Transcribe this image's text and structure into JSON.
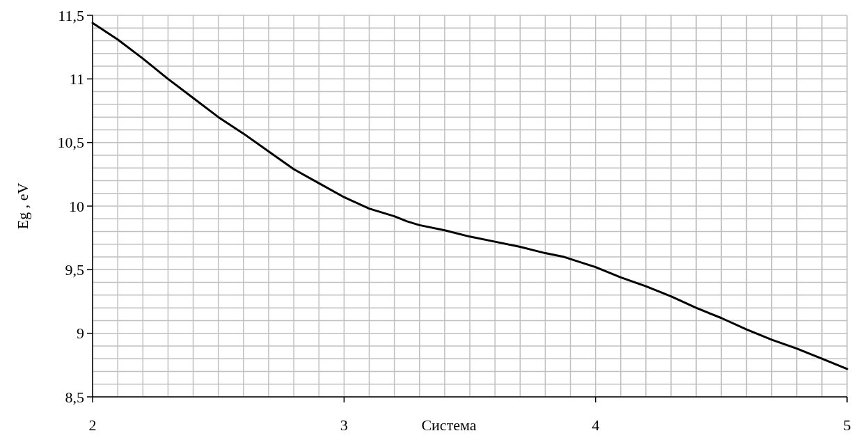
{
  "chart_data": {
    "type": "line",
    "xlabel": "Система",
    "ylabel": "Eg , eV",
    "grid": true,
    "marker": "none",
    "line_style": "solid",
    "xlim": [
      2,
      5
    ],
    "ylim": [
      8.5,
      11.5
    ],
    "xticks": [
      2,
      {
        "value": 2.1,
        "label": null
      },
      {
        "value": 2.2,
        "label": null
      },
      {
        "value": 2.3,
        "label": null
      },
      {
        "value": 2.4,
        "label": null
      },
      {
        "value": 2.5,
        "label": null
      },
      {
        "value": 2.6,
        "label": null
      },
      {
        "value": 2.7,
        "label": null
      },
      {
        "value": 2.8,
        "label": null
      },
      {
        "value": 2.9,
        "label": null
      },
      3,
      {
        "value": 3.1,
        "label": null
      },
      {
        "value": 3.2,
        "label": null
      },
      {
        "value": 3.3,
        "label": null
      },
      {
        "value": 3.4,
        "label": null
      },
      {
        "value": 3.5,
        "label": null
      },
      {
        "value": 3.6,
        "label": null
      },
      {
        "value": 3.7,
        "label": null
      },
      {
        "value": 3.8,
        "label": null
      },
      {
        "value": 3.9,
        "label": null
      },
      4,
      {
        "value": 4.1,
        "label": null
      },
      {
        "value": 4.2,
        "label": null
      },
      {
        "value": 4.3,
        "label": null
      },
      {
        "value": 4.4,
        "label": null
      },
      {
        "value": 4.5,
        "label": null
      },
      {
        "value": 4.6,
        "label": null
      },
      {
        "value": 4.7,
        "label": null
      },
      {
        "value": 4.8,
        "label": null
      },
      {
        "value": 4.9,
        "label": null
      },
      5
    ],
    "yticks": [
      {
        "value": 8.5,
        "label": "8,5"
      },
      {
        "value": 8.6,
        "label": null
      },
      {
        "value": 8.7,
        "label": null
      },
      {
        "value": 8.8,
        "label": null
      },
      {
        "value": 8.9,
        "label": null
      },
      9,
      {
        "value": 9.1,
        "label": null
      },
      {
        "value": 9.2,
        "label": null
      },
      {
        "value": 9.3,
        "label": null
      },
      {
        "value": 9.4,
        "label": null
      },
      {
        "value": 9.5,
        "label": "9,5"
      },
      {
        "value": 9.6,
        "label": null
      },
      {
        "value": 9.7,
        "label": null
      },
      {
        "value": 9.8,
        "label": null
      },
      {
        "value": 9.9,
        "label": null
      },
      10,
      {
        "value": 10.1,
        "label": null
      },
      {
        "value": 10.2,
        "label": null
      },
      {
        "value": 10.3,
        "label": null
      },
      {
        "value": 10.4,
        "label": null
      },
      {
        "value": 10.5,
        "label": "10,5"
      },
      {
        "value": 10.6,
        "label": null
      },
      {
        "value": 10.7,
        "label": null
      },
      {
        "value": 10.8,
        "label": null
      },
      {
        "value": 10.9,
        "label": null
      },
      11,
      {
        "value": 11.1,
        "label": null
      },
      {
        "value": 11.2,
        "label": null
      },
      {
        "value": 11.3,
        "label": null
      },
      {
        "value": 11.4,
        "label": null
      },
      {
        "value": 11.5,
        "label": "11,5"
      }
    ],
    "series": [
      {
        "color": "#000000",
        "x": [
          2,
          2.1,
          2.2,
          2.3,
          2.4,
          2.5,
          2.6,
          2.7,
          2.75,
          2.8,
          2.9,
          3,
          3.1,
          3.2,
          3.25,
          3.3,
          3.4,
          3.5,
          3.6,
          3.7,
          3.8,
          3.875,
          4,
          4.1,
          4.2,
          4.3,
          4.4,
          4.5,
          4.6,
          4.7,
          4.8,
          4.9,
          5
        ],
        "values": [
          11.44,
          11.31,
          11.16,
          11.0,
          10.85,
          10.7,
          10.57,
          10.43,
          10.36,
          10.29,
          10.18,
          10.07,
          9.98,
          9.92,
          9.88,
          9.85,
          9.81,
          9.76,
          9.72,
          9.68,
          9.63,
          9.6,
          9.52,
          9.44,
          9.37,
          9.29,
          9.2,
          9.12,
          9.03,
          8.95,
          8.88,
          8.8,
          8.72
        ]
      }
    ]
  }
}
